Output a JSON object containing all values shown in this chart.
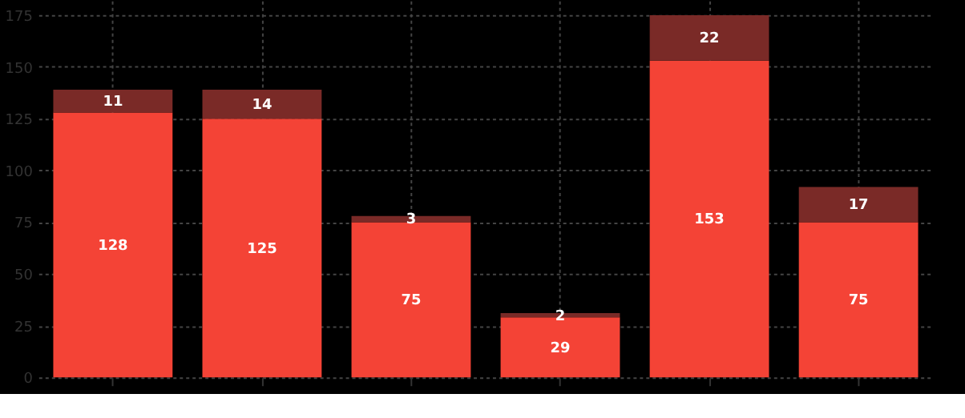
{
  "chart_data": {
    "type": "bar",
    "stacked": true,
    "categories": [
      null,
      null,
      null,
      null,
      null,
      null
    ],
    "series": [
      {
        "color": "#f44336",
        "values": [
          128,
          125,
          75,
          29,
          153,
          75
        ]
      },
      {
        "color": "#7a2a27",
        "values": [
          11,
          14,
          3,
          2,
          22,
          17
        ]
      }
    ],
    "ylim": [
      0,
      182
    ],
    "yticks": [
      0,
      25,
      50,
      75,
      100,
      125,
      150,
      175
    ],
    "grid": true,
    "data_labels": true,
    "tick_labels": "y"
  }
}
